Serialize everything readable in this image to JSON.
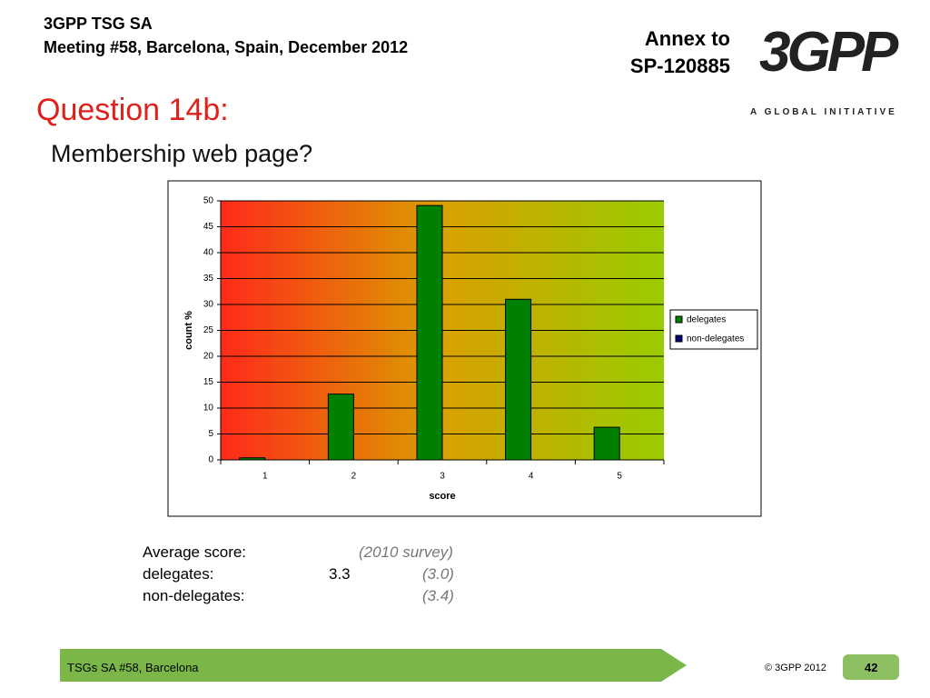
{
  "header": {
    "org": "3GPP TSG SA",
    "meeting": "Meeting #58, Barcelona, Spain, December 2012",
    "annex": "Annex to",
    "doc": "SP-120885",
    "logo": "3GPP",
    "tagline": "A GLOBAL INITIATIVE"
  },
  "title": "Question 14b:",
  "subtitle": "Membership web page?",
  "chart_data": {
    "type": "bar",
    "xlabel": "score",
    "ylabel": "count %",
    "categories": [
      "1",
      "2",
      "3",
      "4",
      "5"
    ],
    "series": [
      {
        "name": "delegates",
        "color": "#008000",
        "values": [
          0.4,
          12.7,
          49.1,
          31,
          6.3
        ]
      },
      {
        "name": "non-delegates",
        "color": "#000080",
        "values": [
          0,
          0,
          0,
          0,
          0
        ]
      }
    ],
    "ylim": [
      0,
      50
    ],
    "yticks": [
      0,
      5,
      10,
      15,
      20,
      25,
      30,
      35,
      40,
      45,
      50
    ],
    "grid": true,
    "legend": "right"
  },
  "averages": {
    "heading": "Average score:",
    "previous_heading": "(2010 survey)",
    "rows": [
      {
        "label": "delegates:",
        "value": "3.3",
        "previous": "(3.0)"
      },
      {
        "label": "non-delegates:",
        "previous": "(3.4)"
      }
    ]
  },
  "footer": {
    "event": "TSGs SA #58, Barcelona",
    "copyright": "© 3GPP 2012",
    "page": "42"
  }
}
